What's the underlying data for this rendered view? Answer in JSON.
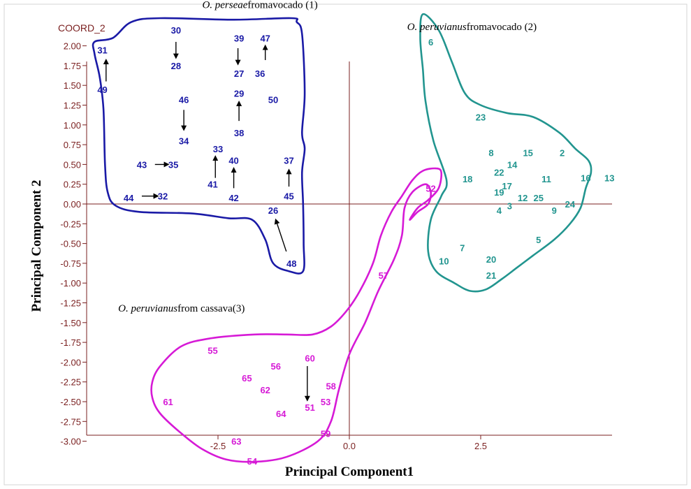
{
  "chart_data": {
    "type": "scatter",
    "title": "",
    "xlabel": "Principal Component1",
    "ylabel": "Principal Component 2",
    "coord_label": "COORD_2",
    "xlim": [
      -5.0,
      5.0
    ],
    "ylim": [
      -3.3,
      2.3
    ],
    "x_ticks": [
      -2.5,
      0.0,
      2.5
    ],
    "x_tick_labels": [
      "-2.5",
      "0.0",
      "2.5"
    ],
    "y_ticks": [
      2.0,
      1.75,
      1.5,
      1.25,
      1.0,
      0.75,
      0.5,
      0.25,
      0.0,
      -0.25,
      -0.5,
      -0.75,
      -1.0,
      -1.25,
      -1.5,
      -1.75,
      -2.0,
      -2.25,
      -2.5,
      -2.75,
      -3.0
    ],
    "y_tick_labels": [
      "2.00",
      "1.75",
      "1.50",
      "1.25",
      "1.00",
      "0.75",
      "0.50",
      "0.25",
      "0.00",
      "-0.25",
      "-0.50",
      "-0.75",
      "-1.00",
      "-1.25",
      "-1.50",
      "-1.75",
      "-2.00",
      "-2.25",
      "-2.50",
      "-2.75",
      "-3.00"
    ],
    "group_labels": [
      {
        "italic": "O. perseae",
        "rest": "fromavocado (1)",
        "x": -2.8,
        "y": 2.48
      },
      {
        "italic": "O. peruvianus",
        "rest": "fromavocado (2)",
        "x": 1.1,
        "y": 2.2
      },
      {
        "italic": "O. peruvianus",
        "rest": "from cassava(3)",
        "x": -4.4,
        "y": -1.36
      }
    ],
    "series": [
      {
        "name": "1",
        "color": "#1a1aa6",
        "hull": [
          [
            -4.85,
            2.05
          ],
          [
            -4.5,
            2.1
          ],
          [
            -4.15,
            2.3
          ],
          [
            -3.6,
            2.35
          ],
          [
            -2.2,
            2.33
          ],
          [
            -1.1,
            2.35
          ],
          [
            -1.0,
            2.3
          ],
          [
            -0.9,
            2.15
          ],
          [
            -0.85,
            1.4
          ],
          [
            -0.9,
            0.9
          ],
          [
            -0.85,
            0.7
          ],
          [
            -0.9,
            0.4
          ],
          [
            -0.88,
            0.0
          ],
          [
            -0.87,
            -0.5
          ],
          [
            -0.88,
            -0.85
          ],
          [
            -1.15,
            -0.85
          ],
          [
            -1.45,
            -0.75
          ],
          [
            -1.6,
            -0.45
          ],
          [
            -1.85,
            -0.2
          ],
          [
            -2.3,
            -0.18
          ],
          [
            -3.0,
            -0.12
          ],
          [
            -4.0,
            -0.1
          ],
          [
            -4.45,
            -0.02
          ],
          [
            -4.6,
            0.15
          ],
          [
            -4.65,
            0.5
          ],
          [
            -4.68,
            1.2
          ],
          [
            -4.75,
            1.6
          ],
          [
            -4.85,
            1.9
          ]
        ],
        "points": [
          {
            "label": "30",
            "x": -3.3,
            "y": 2.2
          },
          {
            "label": "39",
            "x": -2.1,
            "y": 2.1
          },
          {
            "label": "47",
            "x": -1.6,
            "y": 2.1
          },
          {
            "label": "31",
            "x": -4.7,
            "y": 1.95
          },
          {
            "label": "28",
            "x": -3.3,
            "y": 1.75
          },
          {
            "label": "27",
            "x": -2.1,
            "y": 1.65
          },
          {
            "label": "36",
            "x": -1.7,
            "y": 1.65
          },
          {
            "label": "49",
            "x": -4.7,
            "y": 1.45
          },
          {
            "label": "29",
            "x": -2.1,
            "y": 1.4
          },
          {
            "label": "50",
            "x": -1.45,
            "y": 1.32
          },
          {
            "label": "46",
            "x": -3.15,
            "y": 1.32
          },
          {
            "label": "38",
            "x": -2.1,
            "y": 0.9
          },
          {
            "label": "34",
            "x": -3.15,
            "y": 0.8
          },
          {
            "label": "33",
            "x": -2.5,
            "y": 0.7
          },
          {
            "label": "40",
            "x": -2.2,
            "y": 0.55
          },
          {
            "label": "37",
            "x": -1.15,
            "y": 0.55
          },
          {
            "label": "43",
            "x": -3.95,
            "y": 0.5
          },
          {
            "label": "35",
            "x": -3.35,
            "y": 0.5
          },
          {
            "label": "41",
            "x": -2.6,
            "y": 0.25
          },
          {
            "label": "44",
            "x": -4.2,
            "y": 0.08
          },
          {
            "label": "32",
            "x": -3.55,
            "y": 0.1
          },
          {
            "label": "42",
            "x": -2.2,
            "y": 0.08
          },
          {
            "label": "45",
            "x": -1.15,
            "y": 0.1
          },
          {
            "label": "26",
            "x": -1.45,
            "y": -0.08
          },
          {
            "label": "48",
            "x": -1.1,
            "y": -0.75
          }
        ],
        "arrows": [
          [
            -3.3,
            2.05,
            -3.3,
            1.85
          ],
          [
            -2.12,
            1.97,
            -2.12,
            1.77
          ],
          [
            -1.6,
            1.82,
            -1.6,
            2.0
          ],
          [
            -4.63,
            1.55,
            -4.63,
            1.82
          ],
          [
            -3.15,
            1.19,
            -3.15,
            0.94
          ],
          [
            -2.1,
            1.05,
            -2.1,
            1.29
          ],
          [
            -2.55,
            0.33,
            -2.55,
            0.6
          ],
          [
            -2.2,
            0.2,
            -2.2,
            0.45
          ],
          [
            -1.15,
            0.22,
            -1.15,
            0.43
          ],
          [
            -3.7,
            0.5,
            -3.45,
            0.5
          ],
          [
            -3.95,
            0.1,
            -3.65,
            0.1
          ],
          [
            -1.2,
            -0.6,
            -1.4,
            -0.2
          ]
        ]
      },
      {
        "name": "2",
        "color": "#22958f",
        "hull": [
          [
            1.4,
            2.4
          ],
          [
            1.7,
            2.2
          ],
          [
            1.95,
            1.8
          ],
          [
            2.2,
            1.4
          ],
          [
            2.5,
            1.25
          ],
          [
            3.0,
            1.15
          ],
          [
            3.5,
            1.1
          ],
          [
            4.0,
            0.9
          ],
          [
            4.3,
            0.7
          ],
          [
            4.55,
            0.55
          ],
          [
            4.6,
            0.4
          ],
          [
            4.5,
            0.2
          ],
          [
            4.4,
            -0.05
          ],
          [
            4.2,
            -0.25
          ],
          [
            3.9,
            -0.45
          ],
          [
            3.5,
            -0.65
          ],
          [
            3.2,
            -0.8
          ],
          [
            2.9,
            -0.95
          ],
          [
            2.6,
            -1.08
          ],
          [
            2.3,
            -1.1
          ],
          [
            2.0,
            -1.0
          ],
          [
            1.65,
            -0.85
          ],
          [
            1.5,
            -0.6
          ],
          [
            1.55,
            -0.2
          ],
          [
            1.75,
            0.1
          ],
          [
            1.85,
            0.3
          ],
          [
            1.6,
            0.8
          ],
          [
            1.45,
            1.3
          ],
          [
            1.4,
            1.7
          ],
          [
            1.35,
            2.1
          ]
        ],
        "points": [
          {
            "label": "6",
            "x": 1.55,
            "y": 2.05
          },
          {
            "label": "23",
            "x": 2.5,
            "y": 1.1
          },
          {
            "label": "8",
            "x": 2.7,
            "y": 0.65
          },
          {
            "label": "15",
            "x": 3.4,
            "y": 0.65
          },
          {
            "label": "2",
            "x": 4.05,
            "y": 0.65
          },
          {
            "label": "14",
            "x": 3.1,
            "y": 0.5
          },
          {
            "label": "22",
            "x": 2.85,
            "y": 0.4
          },
          {
            "label": "18",
            "x": 2.25,
            "y": 0.32
          },
          {
            "label": "11",
            "x": 3.75,
            "y": 0.32
          },
          {
            "label": "16",
            "x": 4.5,
            "y": 0.33
          },
          {
            "label": "13",
            "x": 4.95,
            "y": 0.33
          },
          {
            "label": "17",
            "x": 3.0,
            "y": 0.23
          },
          {
            "label": "19",
            "x": 2.85,
            "y": 0.15
          },
          {
            "label": "12",
            "x": 3.3,
            "y": 0.08
          },
          {
            "label": "25",
            "x": 3.6,
            "y": 0.08
          },
          {
            "label": "4",
            "x": 2.85,
            "y": -0.08
          },
          {
            "label": "3",
            "x": 3.05,
            "y": -0.02
          },
          {
            "label": "9",
            "x": 3.9,
            "y": -0.08
          },
          {
            "label": "24",
            "x": 4.2,
            "y": 0.0
          },
          {
            "label": "5",
            "x": 3.6,
            "y": -0.45
          },
          {
            "label": "7",
            "x": 2.15,
            "y": -0.55
          },
          {
            "label": "20",
            "x": 2.7,
            "y": -0.7
          },
          {
            "label": "10",
            "x": 1.8,
            "y": -0.72
          },
          {
            "label": "21",
            "x": 2.7,
            "y": -0.9
          }
        ],
        "arrows": []
      },
      {
        "name": "3",
        "color": "#d61ad6",
        "hull": [
          [
            -2.65,
            -1.7
          ],
          [
            -3.2,
            -1.8
          ],
          [
            -3.6,
            -2.05
          ],
          [
            -3.75,
            -2.25
          ],
          [
            -3.75,
            -2.45
          ],
          [
            -3.6,
            -2.65
          ],
          [
            -3.2,
            -2.9
          ],
          [
            -2.8,
            -3.1
          ],
          [
            -2.35,
            -3.23
          ],
          [
            -1.8,
            -3.26
          ],
          [
            -1.2,
            -3.2
          ],
          [
            -0.6,
            -3.0
          ],
          [
            -0.35,
            -2.75
          ],
          [
            -0.2,
            -2.35
          ],
          [
            0.0,
            -1.9
          ],
          [
            0.3,
            -1.5
          ],
          [
            0.55,
            -1.1
          ],
          [
            0.85,
            -0.7
          ],
          [
            1.0,
            -0.4
          ],
          [
            1.05,
            -0.05
          ],
          [
            1.2,
            0.15
          ],
          [
            1.45,
            0.25
          ],
          [
            1.55,
            0.15
          ],
          [
            1.5,
            0.0
          ],
          [
            1.3,
            -0.1
          ],
          [
            1.15,
            -0.2
          ],
          [
            1.3,
            -0.05
          ],
          [
            1.5,
            0.05
          ],
          [
            1.7,
            0.2
          ],
          [
            1.75,
            0.4
          ],
          [
            1.65,
            0.45
          ],
          [
            1.4,
            0.42
          ],
          [
            1.2,
            0.3
          ],
          [
            1.0,
            0.1
          ],
          [
            0.8,
            -0.1
          ],
          [
            0.6,
            -0.4
          ],
          [
            0.45,
            -0.75
          ],
          [
            0.2,
            -1.1
          ],
          [
            -0.05,
            -1.35
          ],
          [
            -0.35,
            -1.55
          ],
          [
            -0.7,
            -1.65
          ],
          [
            -1.2,
            -1.65
          ],
          [
            -1.8,
            -1.65
          ]
        ],
        "points": [
          {
            "label": "52",
            "x": 1.55,
            "y": 0.2
          },
          {
            "label": "57",
            "x": 0.65,
            "y": -0.9
          },
          {
            "label": "55",
            "x": -2.6,
            "y": -1.85
          },
          {
            "label": "60",
            "x": -0.75,
            "y": -1.95
          },
          {
            "label": "56",
            "x": -1.4,
            "y": -2.05
          },
          {
            "label": "65",
            "x": -1.95,
            "y": -2.2
          },
          {
            "label": "58",
            "x": -0.35,
            "y": -2.3
          },
          {
            "label": "62",
            "x": -1.6,
            "y": -2.35
          },
          {
            "label": "61",
            "x": -3.45,
            "y": -2.5
          },
          {
            "label": "53",
            "x": -0.45,
            "y": -2.5
          },
          {
            "label": "51",
            "x": -0.75,
            "y": -2.57
          },
          {
            "label": "64",
            "x": -1.3,
            "y": -2.65
          },
          {
            "label": "59",
            "x": -0.45,
            "y": -2.9
          },
          {
            "label": "63",
            "x": -2.15,
            "y": -3.0
          },
          {
            "label": "54",
            "x": -1.85,
            "y": -3.25
          }
        ],
        "arrows": [
          [
            -0.8,
            -2.05,
            -0.8,
            -2.48
          ]
        ]
      }
    ]
  }
}
